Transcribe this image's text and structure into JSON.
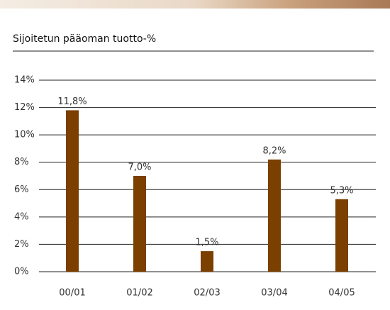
{
  "chart_data": {
    "type": "bar",
    "title": "Sijoitetun pääoman tuotto-%",
    "categories": [
      "00/01",
      "01/02",
      "02/03",
      "03/04",
      "04/05"
    ],
    "values": [
      11.8,
      7.0,
      1.5,
      8.2,
      5.3
    ],
    "value_labels": [
      "11,8%",
      "7,0%",
      "1,5%",
      "8,2%",
      "5,3%"
    ],
    "color": "#7b3f00",
    "ylim": [
      0,
      14
    ],
    "yticks": [
      {
        "value": 0,
        "label": "0%"
      },
      {
        "value": 2,
        "label": "2%"
      },
      {
        "value": 4,
        "label": "4%"
      },
      {
        "value": 6,
        "label": "6%"
      },
      {
        "value": 8,
        "label": "8%"
      },
      {
        "value": 10,
        "label": "10%"
      },
      {
        "value": 12,
        "label": "12%"
      },
      {
        "value": 14,
        "label": "14%"
      }
    ],
    "grid": true
  }
}
